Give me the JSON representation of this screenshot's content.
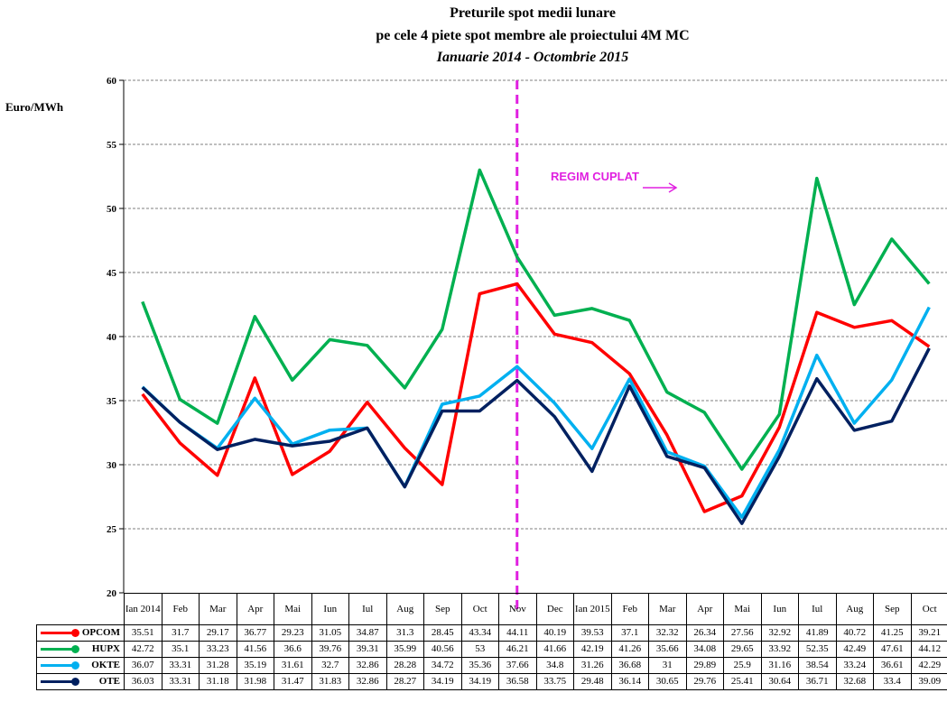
{
  "chart_data": {
    "type": "line",
    "title": "Preturile spot medii lunare",
    "subtitle": "pe cele 4 piete spot membre ale proiectului 4M MC",
    "period": "Ianuarie 2014 - Octombrie 2015",
    "y_label": "Euro/MWh",
    "annotation": "REGIM CUPLAT",
    "categories": [
      "Ian 2014",
      "Feb",
      "Mar",
      "Apr",
      "Mai",
      "Iun",
      "Iul",
      "Aug",
      "Sep",
      "Oct",
      "Nov",
      "Dec",
      "Ian 2015",
      "Feb",
      "Mar",
      "Apr",
      "Mai",
      "Iun",
      "Iul",
      "Aug",
      "Sep",
      "Oct"
    ],
    "ylim": [
      20,
      60
    ],
    "yticks": [
      20,
      25,
      30,
      35,
      40,
      45,
      50,
      55,
      60
    ],
    "grid": true,
    "series": [
      {
        "name": "OPCOM",
        "color": "#ff0000",
        "values": [
          35.51,
          31.7,
          29.17,
          36.77,
          29.23,
          31.05,
          34.87,
          31.3,
          28.45,
          43.34,
          44.11,
          40.19,
          39.53,
          37.1,
          32.32,
          26.34,
          27.56,
          32.92,
          41.89,
          40.72,
          41.25,
          39.21
        ]
      },
      {
        "name": "HUPX",
        "color": "#00b050",
        "values": [
          42.72,
          35.1,
          33.23,
          41.56,
          36.6,
          39.76,
          39.31,
          35.99,
          40.56,
          53,
          46.21,
          41.66,
          42.19,
          41.26,
          35.66,
          34.08,
          29.65,
          33.92,
          52.35,
          42.49,
          47.61,
          44.12
        ]
      },
      {
        "name": "OKTE",
        "color": "#00b0f0",
        "values": [
          36.07,
          33.31,
          31.28,
          35.19,
          31.61,
          32.7,
          32.86,
          28.28,
          34.72,
          35.36,
          37.66,
          34.8,
          31.26,
          36.68,
          31,
          29.89,
          25.9,
          31.16,
          38.54,
          33.24,
          36.61,
          42.29
        ]
      },
      {
        "name": "OTE",
        "color": "#002060",
        "values": [
          36.03,
          33.31,
          31.18,
          31.98,
          31.47,
          31.83,
          32.86,
          28.27,
          34.19,
          34.19,
          36.58,
          33.75,
          29.48,
          36.14,
          30.65,
          29.76,
          25.41,
          30.64,
          36.71,
          32.68,
          33.4,
          39.09
        ]
      }
    ]
  }
}
